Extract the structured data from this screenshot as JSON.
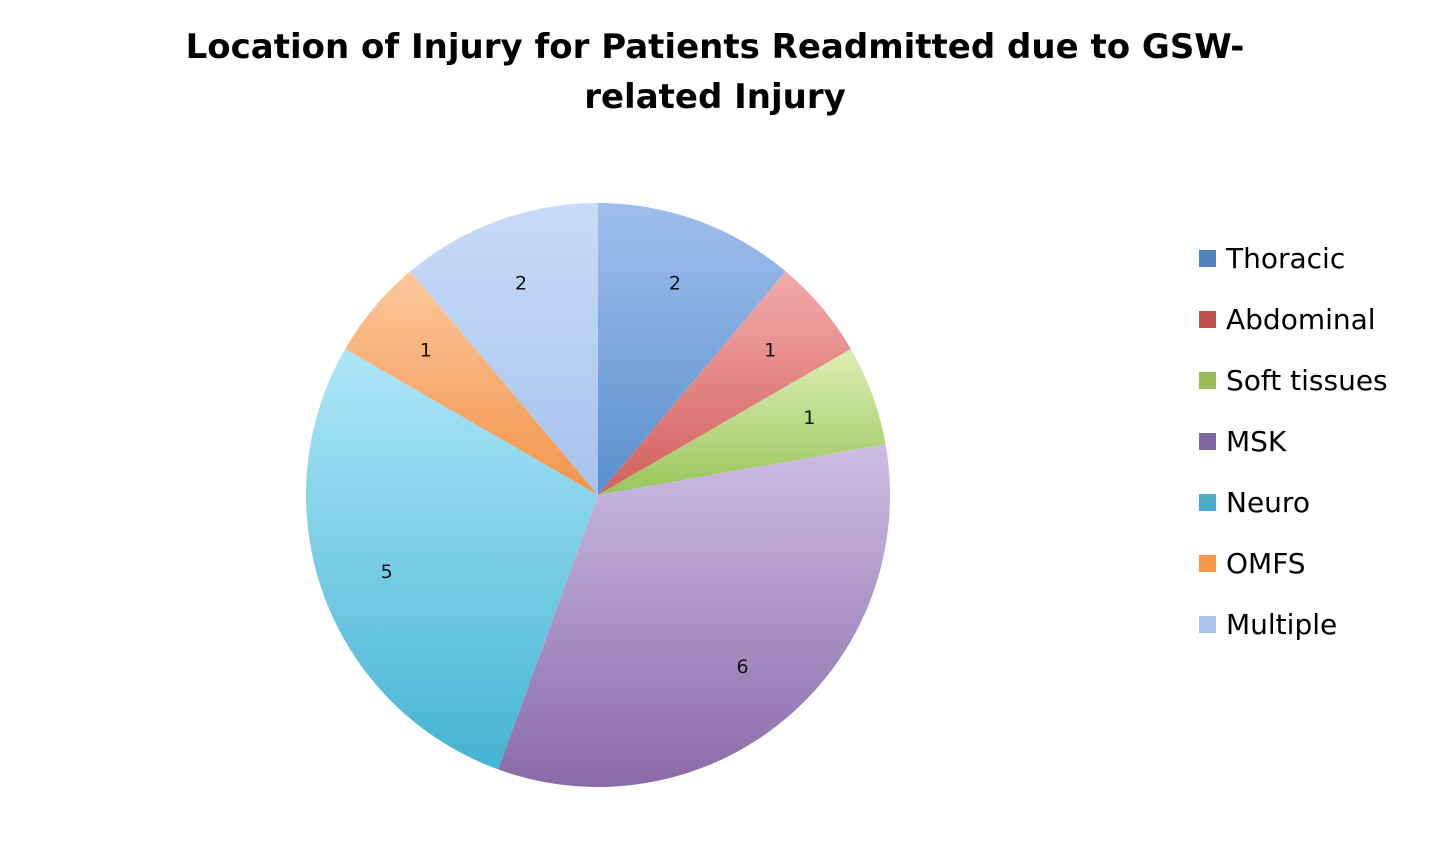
{
  "chart_data": {
    "type": "pie",
    "title": "Location of Injury for Patients Readmitted due to GSW-related Injury",
    "categories": [
      "Thoracic",
      "Abdominal",
      "Soft tissues",
      "MSK",
      "Neuro",
      "OMFS",
      "Multiple"
    ],
    "values": [
      2,
      1,
      1,
      6,
      5,
      1,
      2
    ],
    "data_labels": [
      "2",
      "1",
      "1",
      "6",
      "5",
      "1",
      "2"
    ],
    "colors": [
      {
        "light": "#9fbeec",
        "dark": "#5b8fcd"
      },
      {
        "light": "#f2aaa9",
        "dark": "#d2605d"
      },
      {
        "light": "#deeeb4",
        "dark": "#98c55a"
      },
      {
        "light": "#cdbde4",
        "dark": "#8a6aa8"
      },
      {
        "light": "#aee6f8",
        "dark": "#45b4d2"
      },
      {
        "light": "#fcc79c",
        "dark": "#f2954a"
      },
      {
        "light": "#c8dbf8",
        "dark": "#a6c3ec"
      }
    ],
    "legend_colors": [
      "#4f81bd",
      "#c0504d",
      "#9bbb59",
      "#8064a2",
      "#4bacc6",
      "#f79646",
      "#a9c4ea"
    ],
    "start_angle": "12 o'clock",
    "direction": "clockwise",
    "legend_position": "right"
  }
}
